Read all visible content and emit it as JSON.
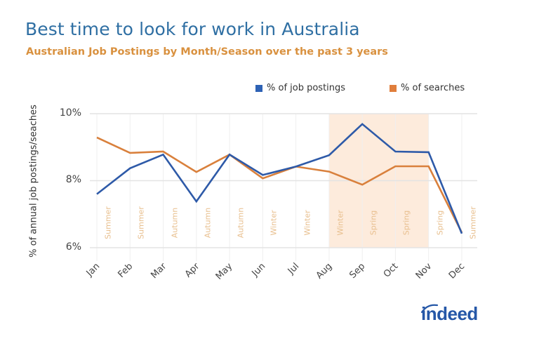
{
  "header": {
    "title": "Best time to look for work in Australia",
    "subtitle": "Australian Job Postings by Month/Season over the past 3 years"
  },
  "legend": [
    {
      "label": "% of job postings",
      "color": "#2e62b5"
    },
    {
      "label": "% of searches",
      "color": "#e07e3c"
    }
  ],
  "logo": {
    "text": "indeed"
  },
  "colors": {
    "postings": "#2e5aa8",
    "searches": "#d9803c",
    "highlight": "#fdebdc",
    "gridline": "#e3e3e3",
    "title": "#2f6fa3",
    "subtitle": "#d9913f",
    "season_label": "#e8bf8e"
  },
  "chart_data": {
    "type": "line",
    "title": "Best time to look for work in Australia",
    "subtitle": "Australian Job Postings by Month/Season over the past 3 years",
    "xlabel": "",
    "ylabel": "% of annual job postings/seaches",
    "categories": [
      "Jan",
      "Feb",
      "Mar",
      "Apr",
      "May",
      "Jun",
      "Jul",
      "Aug",
      "Sep",
      "Oct",
      "Nov",
      "Dec"
    ],
    "season_labels": [
      "Summer",
      "Summer",
      "Autumn",
      "Autumn",
      "Autumn",
      "Winter",
      "Winter",
      "Winter",
      "Spring",
      "Spring",
      "Spring",
      "Summer"
    ],
    "series": [
      {
        "name": "% of job postings",
        "values": [
          7.6,
          8.37,
          8.78,
          7.38,
          8.78,
          8.17,
          8.42,
          8.76,
          9.69,
          8.87,
          8.85,
          6.42
        ]
      },
      {
        "name": "% of searches",
        "values": [
          9.29,
          8.83,
          8.87,
          8.26,
          8.78,
          8.07,
          8.42,
          8.27,
          7.88,
          8.43,
          8.43,
          6.45
        ]
      }
    ],
    "yticks": [
      "6%",
      "8%",
      "10%"
    ],
    "ylim": [
      6,
      10
    ],
    "grid": true,
    "legend_position": "top-right",
    "highlight_range": {
      "from": "Aug",
      "to": "Nov",
      "note": "shaded region"
    }
  }
}
